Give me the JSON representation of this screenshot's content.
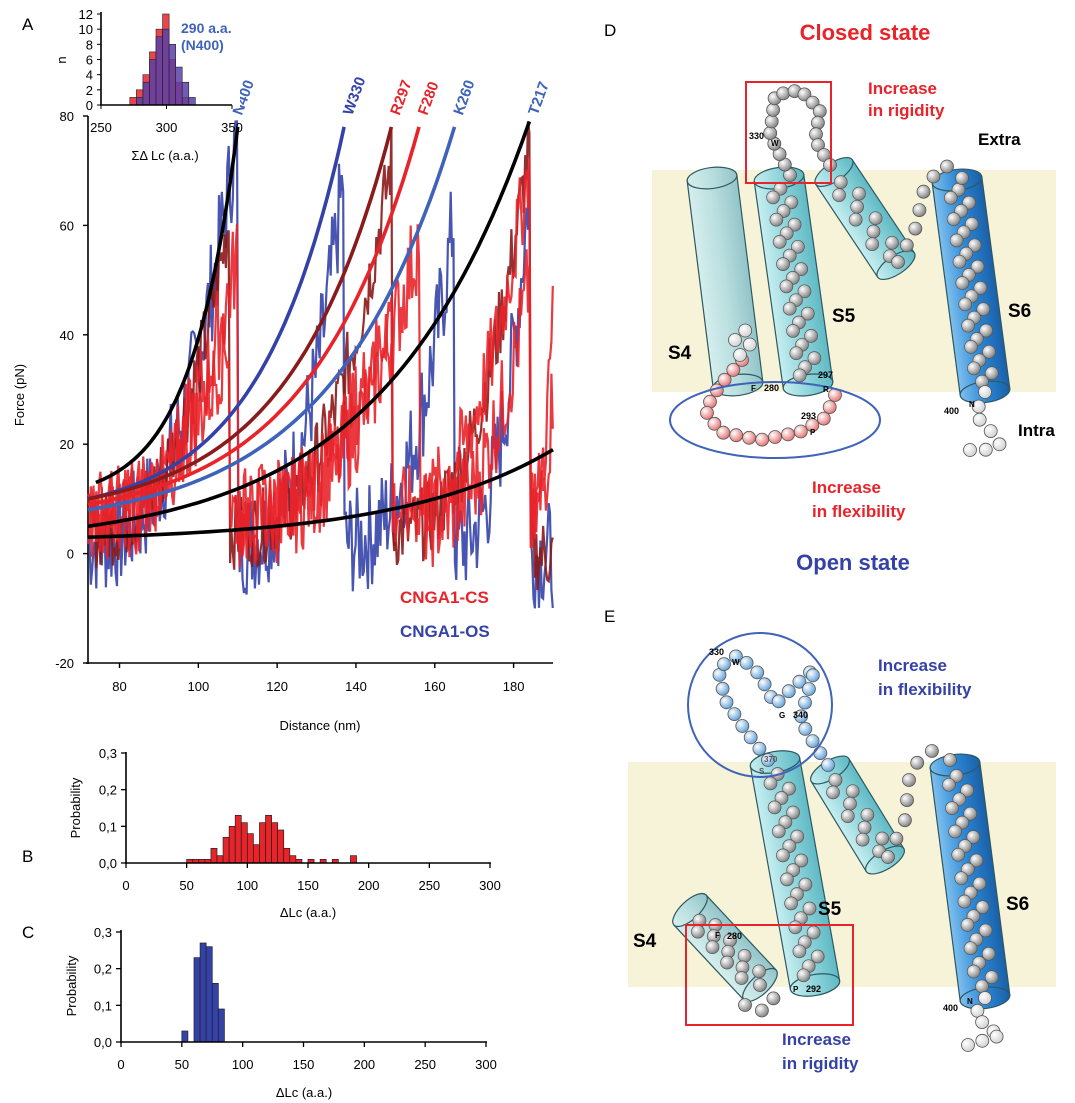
{
  "panels": [
    "A",
    "B",
    "C",
    "D",
    "E"
  ],
  "colors": {
    "red": "#e8232a",
    "darkred": "#8b1a1a",
    "blue": "#3442a8",
    "lightblue": "#3f63b8",
    "black": "#000000",
    "membrane": "#f7f3d8",
    "helix": "#80cfd6",
    "s6": "#2a7fcf"
  },
  "chart_data": [
    {
      "id": "A",
      "type": "line",
      "xlabel": "Distance (nm)",
      "ylabel": "Force (pN)",
      "xlim": [
        72,
        190
      ],
      "ylim": [
        -20,
        80
      ],
      "xticks": [
        80,
        100,
        120,
        140,
        160,
        180
      ],
      "yticks": [
        -20,
        0,
        20,
        40,
        60,
        80
      ],
      "legend": [
        "CNGA1-CS",
        "CNGA1-OS"
      ],
      "legend_position": "bottom-right",
      "peak_labels": [
        {
          "label": "N400",
          "x": 109,
          "color": "#3f63b8"
        },
        {
          "label": "W330",
          "x": 137,
          "color": "#3442a8"
        },
        {
          "label": "R297",
          "x": 149,
          "color": "#e8232a"
        },
        {
          "label": "F280",
          "x": 156,
          "color": "#e8232a"
        },
        {
          "label": "K260",
          "x": 165,
          "color": "#3f63b8"
        },
        {
          "label": "T217",
          "x": 184,
          "color": "#3f63b8"
        }
      ],
      "wlc_fits": [
        {
          "color": "#000000",
          "start": [
            74,
            13
          ],
          "end": [
            110,
            78
          ]
        },
        {
          "color": "#3442a8",
          "start": [
            72,
            10
          ],
          "end": [
            137,
            78
          ]
        },
        {
          "color": "#8b1a1a",
          "start": [
            72,
            10
          ],
          "end": [
            149,
            78
          ]
        },
        {
          "color": "#e8232a",
          "start": [
            72,
            9
          ],
          "end": [
            156,
            78
          ]
        },
        {
          "color": "#3f63b8",
          "start": [
            72,
            8
          ],
          "end": [
            165,
            78
          ]
        },
        {
          "color": "#000000",
          "start": [
            72,
            5
          ],
          "end": [
            184,
            79
          ]
        },
        {
          "color": "#000000",
          "start": [
            72,
            3
          ],
          "end": [
            190,
            19
          ]
        }
      ]
    },
    {
      "id": "A-inset",
      "type": "bar",
      "xlabel": "ΣΔ Lc (a.a.)",
      "ylabel": "n",
      "xlim": [
        250,
        350
      ],
      "ylim": [
        0,
        12
      ],
      "xticks": [
        250,
        300,
        350
      ],
      "yticks": [
        0,
        2,
        4,
        6,
        8,
        10,
        12
      ],
      "annotation": [
        "290 a.a.",
        "(N400)"
      ],
      "bin_starts": [
        272,
        277,
        282,
        287,
        292,
        297,
        302,
        307,
        312,
        317
      ],
      "series": [
        {
          "values": [
            1,
            2,
            4,
            7,
            10,
            12,
            6,
            3,
            1,
            0
          ],
          "color": "#e8232a"
        },
        {
          "values": [
            0,
            1,
            3,
            6,
            9,
            10,
            8,
            5,
            3,
            1
          ],
          "color": "#5a3fa8"
        }
      ]
    },
    {
      "id": "B",
      "type": "bar",
      "xlabel": "ΔLc (a.a.)",
      "ylabel": "Probability",
      "xlim": [
        0,
        300
      ],
      "ylim": [
        0,
        0.3
      ],
      "xticks": [
        0,
        50,
        100,
        150,
        200,
        250,
        300
      ],
      "yticks": [
        "0,0",
        "0,1",
        "0,2",
        "0,3"
      ],
      "color": "#e8232a",
      "bin_starts": [
        50,
        55,
        60,
        65,
        70,
        75,
        80,
        85,
        90,
        95,
        100,
        105,
        110,
        115,
        120,
        125,
        130,
        135,
        140,
        150,
        160,
        170,
        180,
        185
      ],
      "values": [
        0.01,
        0.01,
        0.01,
        0.01,
        0.04,
        0.02,
        0.07,
        0.1,
        0.13,
        0.11,
        0.08,
        0.05,
        0.11,
        0.13,
        0.11,
        0.09,
        0.04,
        0.02,
        0.01,
        0.01,
        0.01,
        0.01,
        0.0,
        0.02
      ]
    },
    {
      "id": "C",
      "type": "bar",
      "xlabel": "ΔLc (a.a.)",
      "ylabel": "Probability",
      "xlim": [
        0,
        300
      ],
      "ylim": [
        0,
        0.3
      ],
      "xticks": [
        0,
        50,
        100,
        150,
        200,
        250,
        300
      ],
      "yticks": [
        "0,0",
        "0,1",
        "0,2",
        "0,3"
      ],
      "color": "#3442a8",
      "bin_starts": [
        50,
        55,
        60,
        65,
        70,
        75,
        80
      ],
      "values": [
        0.03,
        0.0,
        0.23,
        0.27,
        0.26,
        0.16,
        0.09
      ]
    }
  ],
  "diagram_d": {
    "title": "Closed state",
    "rigidity": [
      "Increase",
      "in rigidity"
    ],
    "flexibility": [
      "Increase",
      "in flexibility"
    ],
    "extra": "Extra",
    "intra": "Intra",
    "s4": "S4",
    "s5": "S5",
    "s6": "S6",
    "res": [
      "330",
      "W",
      "F",
      "280",
      "297",
      "R",
      "293",
      "P",
      "400",
      "N"
    ]
  },
  "diagram_e": {
    "title": "Open state",
    "flexibility": [
      "Increase",
      "in flexibility"
    ],
    "rigidity": [
      "Increase",
      "in rigidity"
    ],
    "s4": "S4",
    "s5": "S5",
    "s6": "S6",
    "res": [
      "330",
      "W",
      "G",
      "340",
      "370",
      "S",
      "F",
      "280",
      "P",
      "292",
      "400",
      "N"
    ]
  }
}
